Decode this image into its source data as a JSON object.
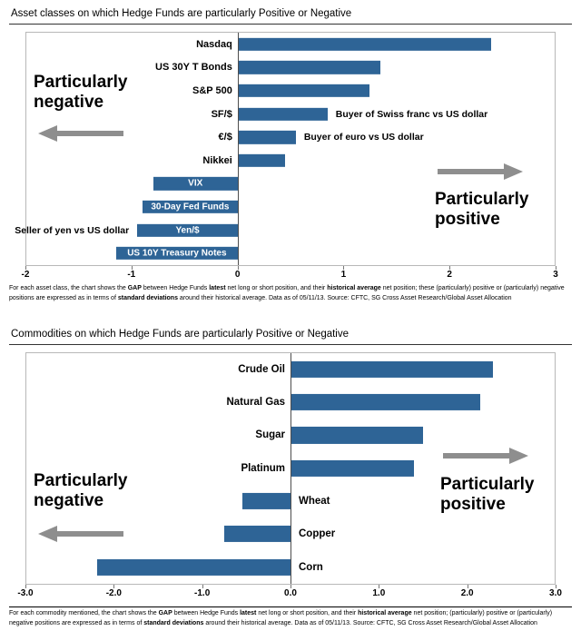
{
  "chart_data": [
    {
      "type": "bar",
      "orientation": "horizontal",
      "title": "Asset classes on which Hedge Funds are particularly Positive or Negative",
      "xlim": [
        -2,
        3
      ],
      "grid": false,
      "legend": false,
      "bar_color": "#2e6496",
      "arrow_color": "#8e8e8e",
      "negative_label_style": "inside",
      "annotations": {
        "negative": "Particularly negative",
        "positive": "Particularly positive"
      },
      "ticks": [
        {
          "label": "-2",
          "value": -2
        },
        {
          "label": "-1",
          "value": -1
        },
        {
          "label": "0",
          "value": 0
        },
        {
          "label": "1",
          "value": 1
        },
        {
          "label": "2",
          "value": 2
        },
        {
          "label": "3",
          "value": 3
        }
      ],
      "items": [
        {
          "label": "Nasdaq",
          "value": 2.4
        },
        {
          "label": "US 30Y T Bonds",
          "value": 1.35
        },
        {
          "label": "S&P 500",
          "value": 1.25
        },
        {
          "label": "SF/$",
          "value": 0.85,
          "annotation": "Buyer of Swiss franc vs US dollar",
          "annotation_side": "right"
        },
        {
          "label": "€/$",
          "value": 0.55,
          "annotation": "Buyer of euro vs US dollar",
          "annotation_side": "right"
        },
        {
          "label": "Nikkei",
          "value": 0.45
        },
        {
          "label": "VIX",
          "value": -0.8
        },
        {
          "label": "30-Day Fed Funds",
          "value": -0.9
        },
        {
          "label": "Yen/$",
          "value": -0.95,
          "annotation": "Seller of yen vs US dollar",
          "annotation_side": "left"
        },
        {
          "label": "US 10Y Treasury Notes",
          "value": -1.15
        }
      ],
      "footnote_segments": [
        {
          "t": "For each asset class, the chart shows the ",
          "b": false
        },
        {
          "t": "GAP",
          "b": true
        },
        {
          "t": " between Hedge Funds ",
          "b": false
        },
        {
          "t": "latest",
          "b": true
        },
        {
          "t": " net long or short position, and their ",
          "b": false
        },
        {
          "t": "historical average",
          "b": true
        },
        {
          "t": " net position; these (particularly) positive or (particularly) negative positions are expressed as in terms of ",
          "b": false
        },
        {
          "t": "standard deviations",
          "b": true
        },
        {
          "t": " around their historical average. Data as of 05/11/13. Source: CFTC, SG Cross Asset Research/Global Asset Allocation",
          "b": false
        }
      ]
    },
    {
      "type": "bar",
      "orientation": "horizontal",
      "title": "Commodities on which Hedge Funds are particularly Positive or Negative",
      "xlim": [
        -3,
        3
      ],
      "grid": false,
      "legend": false,
      "bar_color": "#2e6496",
      "arrow_color": "#8e8e8e",
      "negative_label_style": "opposite",
      "annotations": {
        "negative": "Particularly negative",
        "positive": "Particularly positive"
      },
      "ticks": [
        {
          "label": "-3.0",
          "value": -3
        },
        {
          "label": "-2.0",
          "value": -2
        },
        {
          "label": "-1.0",
          "value": -1
        },
        {
          "label": "0.0",
          "value": 0
        },
        {
          "label": "1.0",
          "value": 1
        },
        {
          "label": "2.0",
          "value": 2
        },
        {
          "label": "3.0",
          "value": 3
        }
      ],
      "items": [
        {
          "label": "Crude Oil",
          "value": 2.3
        },
        {
          "label": "Natural Gas",
          "value": 2.15
        },
        {
          "label": "Sugar",
          "value": 1.5
        },
        {
          "label": "Platinum",
          "value": 1.4
        },
        {
          "label": "Wheat",
          "value": -0.55
        },
        {
          "label": "Copper",
          "value": -0.75
        },
        {
          "label": "Corn",
          "value": -2.2
        }
      ],
      "footnote_segments": [
        {
          "t": "For each commodity mentioned, the chart shows the ",
          "b": false
        },
        {
          "t": "GAP",
          "b": true
        },
        {
          "t": " between Hedge Funds ",
          "b": false
        },
        {
          "t": "latest",
          "b": true
        },
        {
          "t": " net long or short position, and their ",
          "b": false
        },
        {
          "t": "historical average",
          "b": true
        },
        {
          "t": " net position; (particularly) positive or (particularly) negative positions are expressed as in terms of ",
          "b": false
        },
        {
          "t": "standard deviations",
          "b": true
        },
        {
          "t": " around their historical average. Data as of 05/11/13. Source: CFTC, SG Cross Asset Research/Global Asset Allocation",
          "b": false
        }
      ]
    }
  ]
}
